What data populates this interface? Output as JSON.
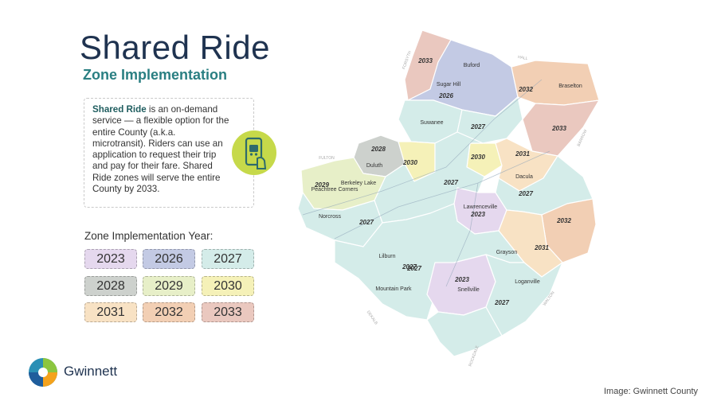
{
  "header": {
    "title": "Shared Ride",
    "subtitle": "Zone Implementation"
  },
  "info": {
    "bold": "Shared Ride",
    "text": " is an on-demand service — a flexible option for the entire County (a.k.a. microtransit). Riders can use an application to request their trip and pay for their fare. Shared Ride zones will serve the entire County by 2033."
  },
  "legend": {
    "title": "Zone Implementation Year:",
    "years": [
      {
        "label": "2023",
        "color": "#e5d8ee"
      },
      {
        "label": "2026",
        "color": "#c3cae4"
      },
      {
        "label": "2027",
        "color": "#d4ece9"
      },
      {
        "label": "2028",
        "color": "#cdd1cd"
      },
      {
        "label": "2029",
        "color": "#e7efc8"
      },
      {
        "label": "2030",
        "color": "#f5f1b8"
      },
      {
        "label": "2031",
        "color": "#f8e2c4"
      },
      {
        "label": "2032",
        "color": "#f2cfb4"
      },
      {
        "label": "2033",
        "color": "#eac8bf"
      }
    ]
  },
  "map": {
    "places": [
      "Buford",
      "Sugar Hill",
      "Braselton",
      "Suwanee",
      "Duluth",
      "Berkeley Lake",
      "Peachtree Corners",
      "Norcross",
      "Lawrenceville",
      "Dacula",
      "Grayson",
      "Lilburn",
      "Mountain Park",
      "Snellville",
      "Loganville"
    ],
    "zone_years": [
      "2033",
      "2026",
      "2032",
      "2033",
      "2027",
      "2028",
      "2030",
      "2030",
      "2031",
      "2029",
      "2027",
      "2027",
      "2023",
      "2027",
      "2032",
      "2031",
      "2027",
      "2027",
      "2023",
      "2027"
    ],
    "borders": [
      "FORSYTH",
      "HALL",
      "BARROW",
      "FULTON",
      "DEKALB",
      "WALTON",
      "ROCKDALE"
    ]
  },
  "brand": {
    "name": "Gwinnett"
  },
  "credit": "Image: Gwinnett County"
}
